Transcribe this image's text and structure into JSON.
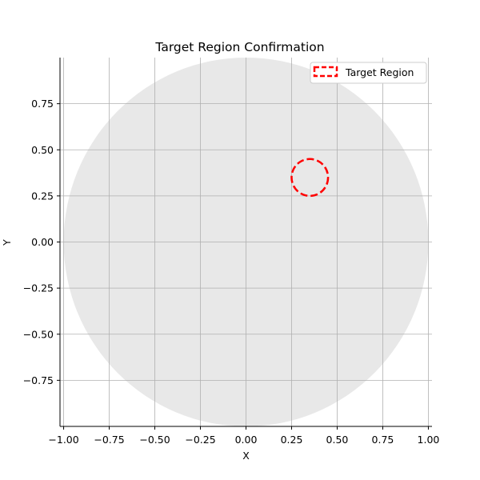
{
  "chart_data": {
    "type": "scatter",
    "title": "Target Region Confirmation",
    "xlabel": "X",
    "ylabel": "Y",
    "xlim": [
      -1.02,
      1.02
    ],
    "ylim": [
      -1.0,
      1.0
    ],
    "grid": true,
    "x_ticks": [
      -1.0,
      -0.75,
      -0.5,
      -0.25,
      0.0,
      0.25,
      0.5,
      0.75,
      1.0
    ],
    "x_tick_labels": [
      "−1.00",
      "−0.75",
      "−0.50",
      "−0.25",
      "0.00",
      "0.25",
      "0.50",
      "0.75",
      "1.00"
    ],
    "y_ticks": [
      -0.75,
      -0.5,
      -0.25,
      0.0,
      0.25,
      0.5,
      0.75
    ],
    "y_tick_labels": [
      "−0.75",
      "−0.50",
      "−0.25",
      "0.00",
      "0.25",
      "0.50",
      "0.75"
    ],
    "shapes": [
      {
        "kind": "disc",
        "center": [
          0.0,
          0.0
        ],
        "radius": 1.0,
        "color": "#e8e8e8"
      },
      {
        "kind": "circle",
        "name": "Target Region",
        "center": [
          0.35,
          0.35
        ],
        "radius": 0.1,
        "color": "#ff0000",
        "style": "dashed"
      }
    ],
    "legend": {
      "position": "top-right",
      "entries": [
        "Target Region"
      ]
    },
    "colors": {
      "grid": "#b0b0b0",
      "disc": "#e8e8e8",
      "target": "#ff0000"
    }
  }
}
